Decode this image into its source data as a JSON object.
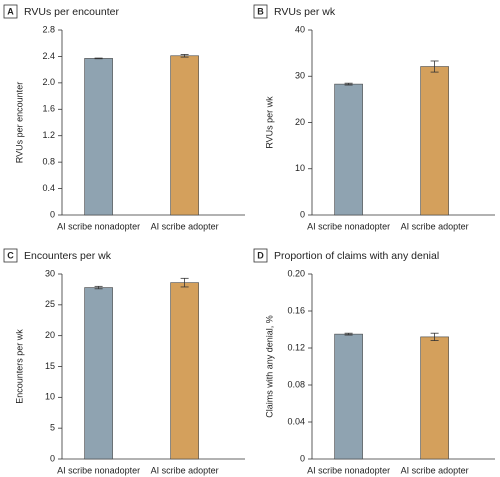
{
  "chart_data": [
    {
      "type": "bar",
      "panel": "A",
      "title": "RVUs per encounter",
      "y_label": "RVUs per encounter",
      "categories": [
        "AI scribe nonadopter",
        "AI scribe adopter"
      ],
      "values": [
        2.37,
        2.41
      ],
      "errors": [
        0.005,
        0.02
      ],
      "colors": [
        "#8fa3b1",
        "#d4a05c"
      ],
      "ylim": [
        0,
        2.8
      ],
      "yticks": [
        0,
        0.4,
        0.8,
        1.2,
        1.6,
        {
          "value": 2,
          "label": "2.0"
        },
        2.4,
        2.8
      ]
    },
    {
      "type": "bar",
      "panel": "B",
      "title": "RVUs per wk",
      "y_label": "RVUs per wk",
      "categories": [
        "AI scribe nonadopter",
        "AI scribe adopter"
      ],
      "values": [
        28.3,
        32.1
      ],
      "errors": [
        0.2,
        1.2
      ],
      "colors": [
        "#8fa3b1",
        "#d4a05c"
      ],
      "ylim": [
        0,
        40
      ],
      "yticks": [
        0,
        10,
        20,
        30,
        40
      ]
    },
    {
      "type": "bar",
      "panel": "C",
      "title": "Encounters per wk",
      "y_label": "Encounters per wk",
      "categories": [
        "AI scribe nonadopter",
        "AI scribe adopter"
      ],
      "values": [
        27.8,
        28.6
      ],
      "errors": [
        0.2,
        0.7
      ],
      "colors": [
        "#8fa3b1",
        "#d4a05c"
      ],
      "ylim": [
        0,
        30
      ],
      "yticks": [
        0,
        5,
        10,
        15,
        20,
        25,
        30
      ]
    },
    {
      "type": "bar",
      "panel": "D",
      "title": "Proportion of claims with any denial",
      "y_label": "Claims with any denial, %",
      "categories": [
        "AI scribe nonadopter",
        "AI scribe adopter"
      ],
      "values": [
        0.135,
        0.132
      ],
      "errors": [
        0.001,
        0.004
      ],
      "colors": [
        "#8fa3b1",
        "#d4a05c"
      ],
      "ylim": [
        0,
        0.2
      ],
      "yticks": [
        0,
        0.04,
        0.08,
        0.12,
        0.16,
        {
          "value": 0.2,
          "label": "0.20"
        }
      ]
    }
  ]
}
